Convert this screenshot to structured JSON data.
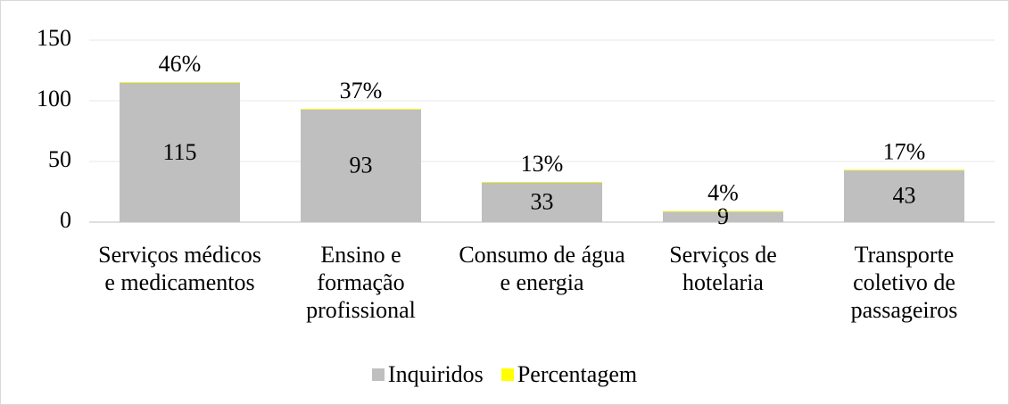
{
  "chart_data": {
    "type": "bar",
    "stacked": true,
    "categories": [
      "Serviços médicos e medicamentos",
      "Ensino e formação profissional",
      "Consumo de água e energia",
      "Serviços de hotelaria",
      "Transporte coletivo de passageiros"
    ],
    "series": [
      {
        "name": "Inquiridos",
        "color": "#bfbfbf",
        "values": [
          115,
          93,
          33,
          9,
          43
        ]
      },
      {
        "name": "Percentagem",
        "color": "#ffff00",
        "values": [
          0.46,
          0.37,
          0.13,
          0.04,
          0.17
        ],
        "value_labels": [
          "46%",
          "37%",
          "13%",
          "4%",
          "17%"
        ]
      }
    ],
    "ylim": [
      0,
      150
    ],
    "yticks": [
      0,
      50,
      100,
      150
    ],
    "grid": true,
    "legend": "bottom"
  }
}
